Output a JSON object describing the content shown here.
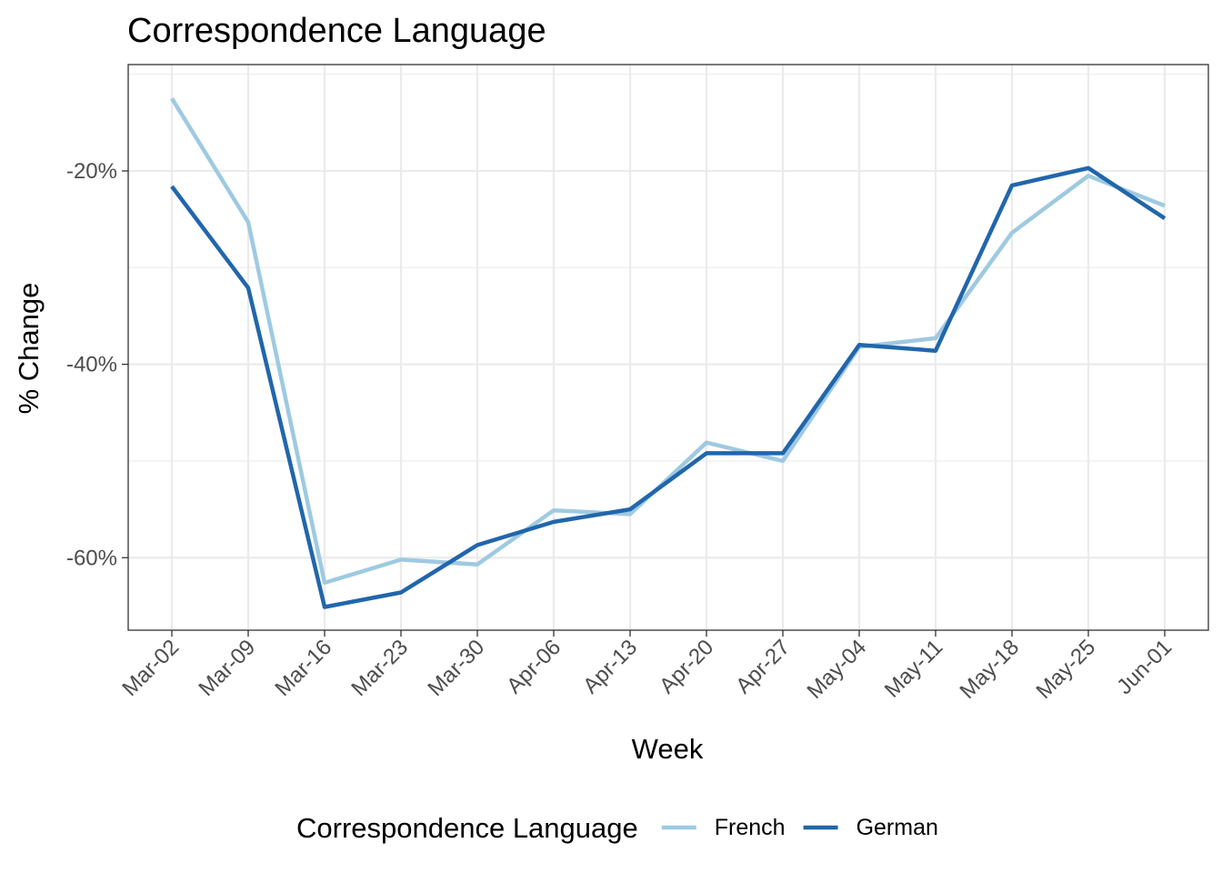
{
  "colors": {
    "french": "#9ecae1",
    "german": "#2166ac",
    "grid": "#ebebeb",
    "panel_border": "#333333"
  },
  "chart_data": {
    "type": "line",
    "title": "Correspondence Language",
    "xlabel": "Week",
    "ylabel": "% Change",
    "categories": [
      "Mar-02",
      "Mar-09",
      "Mar-16",
      "Mar-23",
      "Mar-30",
      "Apr-06",
      "Apr-13",
      "Apr-20",
      "Apr-27",
      "May-04",
      "May-11",
      "May-18",
      "May-25",
      "Jun-01"
    ],
    "y_ticks": [
      -60,
      -40,
      -20
    ],
    "y_tick_labels": [
      "-60%",
      "-40%",
      "-20%"
    ],
    "ylim": [
      -67.5,
      -9
    ],
    "grid": true,
    "legend_position": "bottom",
    "legend_title": "Correspondence Language",
    "series": [
      {
        "name": "French",
        "color": "#9ecae1",
        "values": [
          -12.5,
          -25.3,
          -62.6,
          -60.2,
          -60.7,
          -55.1,
          -55.5,
          -48.1,
          -50.0,
          -38.2,
          -37.3,
          -26.4,
          -20.5,
          -23.6
        ]
      },
      {
        "name": "German",
        "color": "#2166ac",
        "values": [
          -21.6,
          -32.1,
          -65.1,
          -63.6,
          -58.7,
          -56.3,
          -55.0,
          -49.2,
          -49.2,
          -38.0,
          -38.6,
          -21.5,
          -19.7,
          -24.9
        ]
      }
    ]
  }
}
